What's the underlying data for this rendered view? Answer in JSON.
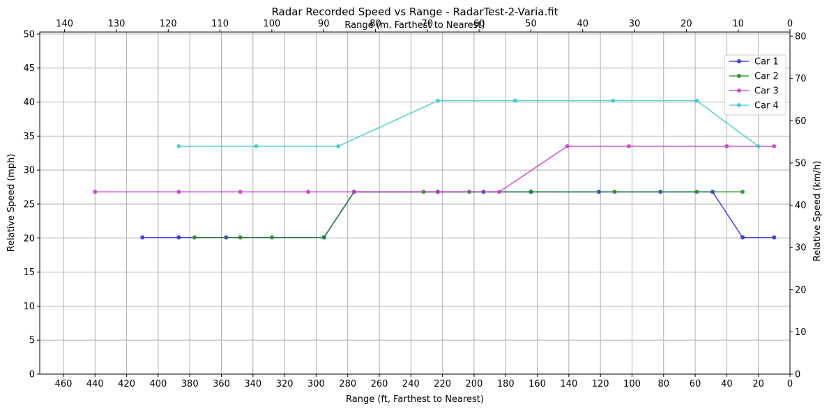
{
  "chart_data": {
    "type": "line",
    "title": "Radar Recorded Speed vs Range - RadarTest-2-Varia.fit",
    "xlabel": "Range (ft, Farthest to Nearest)",
    "ylabel": "Relative Speed (mph)",
    "x2label": "Range (m, Farthest to Nearest)",
    "y2label": "Relative Speed (km/h)",
    "xlim": [
      475,
      0
    ],
    "ylim": [
      0,
      50.3
    ],
    "x2lim": [
      144.8,
      0
    ],
    "y2lim": [
      0,
      81
    ],
    "x_ticks": [
      "460",
      "440",
      "420",
      "400",
      "380",
      "360",
      "340",
      "320",
      "300",
      "280",
      "260",
      "240",
      "220",
      "200",
      "180",
      "160",
      "140",
      "120",
      "100",
      "80",
      "60",
      "40",
      "20",
      "0"
    ],
    "y_ticks": [
      "0",
      "5",
      "10",
      "15",
      "20",
      "25",
      "30",
      "35",
      "40",
      "45",
      "50"
    ],
    "x2_ticks": [
      "140",
      "130",
      "120",
      "110",
      "100",
      "90",
      "80",
      "70",
      "60",
      "50",
      "40",
      "30",
      "20",
      "10",
      "0"
    ],
    "y2_ticks": [
      "0",
      "10",
      "20",
      "30",
      "40",
      "50",
      "60",
      "70",
      "80"
    ],
    "grid": true,
    "legend_position": "top-right",
    "series": [
      {
        "name": "Car 1",
        "color": "#2a2ae8",
        "x": [
          410,
          387,
          357,
          295,
          276,
          223,
          194,
          164,
          121,
          82,
          49,
          30,
          10
        ],
        "y": [
          20.1,
          20.1,
          20.1,
          20.1,
          26.8,
          26.8,
          26.8,
          26.8,
          26.8,
          26.8,
          26.8,
          20.1,
          20.1
        ]
      },
      {
        "name": "Car 2",
        "color": "#238b23",
        "x": [
          377,
          348,
          328,
          295,
          276,
          232,
          203,
          164,
          111,
          59,
          30
        ],
        "y": [
          20.1,
          20.1,
          20.1,
          20.1,
          26.8,
          26.8,
          26.8,
          26.8,
          26.8,
          26.8,
          26.8
        ]
      },
      {
        "name": "Car 3",
        "color": "#c83cc8",
        "x": [
          440,
          387,
          348,
          305,
          276,
          223,
          184,
          141,
          102,
          40,
          10
        ],
        "y": [
          26.8,
          26.8,
          26.8,
          26.8,
          26.8,
          26.8,
          26.8,
          33.5,
          33.5,
          33.5,
          33.5
        ]
      },
      {
        "name": "Car 4",
        "color": "#3ccaca",
        "x": [
          387,
          338,
          286,
          223,
          174,
          112,
          59,
          20
        ],
        "y": [
          33.5,
          33.5,
          33.5,
          40.2,
          40.2,
          40.2,
          40.2,
          33.5
        ]
      }
    ]
  }
}
